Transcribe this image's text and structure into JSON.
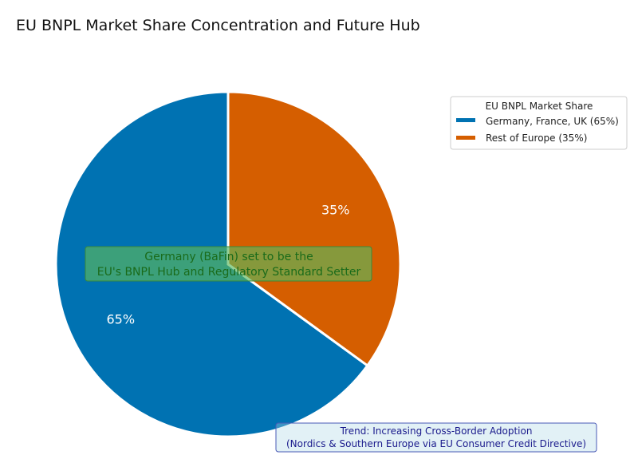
{
  "chart_data": {
    "type": "pie",
    "title": "EU BNPL Market Share Concentration and Future Hub",
    "categories": [
      "Germany, France, UK (65%)",
      "Rest of Europe (35%)"
    ],
    "values": [
      65,
      35
    ],
    "slice_labels": [
      "65%",
      "35%"
    ],
    "colors": [
      "#0072b2",
      "#d55e00"
    ],
    "start_angle": "90° (12 o'clock), counter-clockwise",
    "legend": {
      "title": "EU BNPL Market Share",
      "placement": "top-right",
      "entries": [
        "Germany, France, UK (65%)",
        "Rest of Europe (35%)"
      ]
    },
    "annotations": [
      {
        "lines": [
          "Germany (BaFin) set to be the",
          "EU's BNPL Hub and Regulatory Standard Setter"
        ],
        "box_color": "#5cb85c"
      },
      {
        "lines": [
          "Trend: Increasing Cross-Border Adoption",
          "(Nordics & Southern Europe via EU Consumer Credit Directive)"
        ],
        "box_color": "#add8e6"
      }
    ]
  }
}
